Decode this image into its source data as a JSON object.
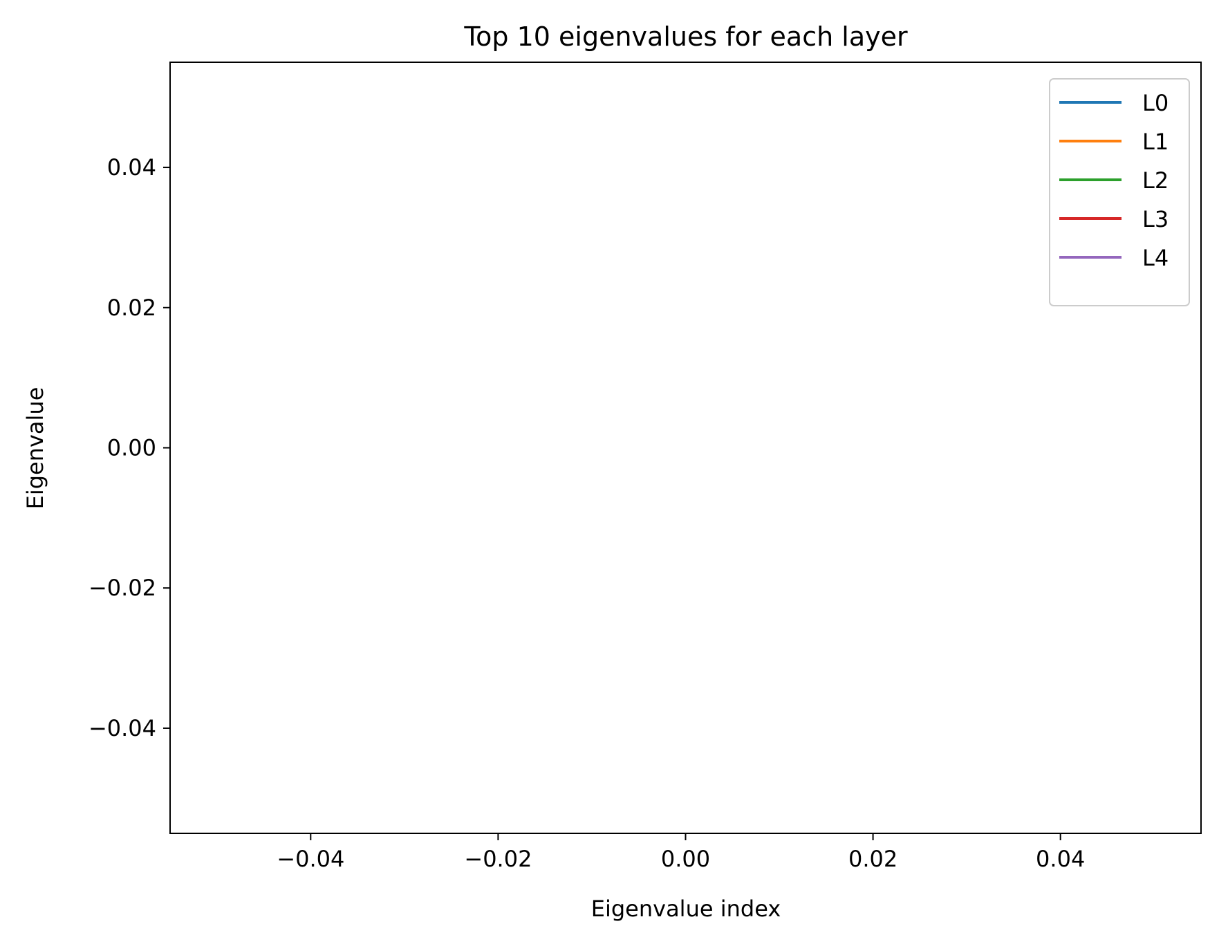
{
  "chart_data": {
    "type": "line",
    "title": "Top 10 eigenvalues for each layer",
    "xlabel": "Eigenvalue index",
    "ylabel": "Eigenvalue",
    "xlim": [
      -0.055,
      0.055
    ],
    "ylim": [
      -0.055,
      0.055
    ],
    "xticks": [
      -0.04,
      -0.02,
      0.0,
      0.02,
      0.04
    ],
    "yticks": [
      -0.04,
      -0.02,
      0.0,
      0.02,
      0.04
    ],
    "xtick_labels": [
      "−0.04",
      "−0.02",
      "0.00",
      "0.02",
      "0.04"
    ],
    "ytick_labels": [
      "−0.04",
      "−0.02",
      "0.00",
      "0.02",
      "0.04"
    ],
    "grid": false,
    "legend_position": "top-right",
    "series": [
      {
        "name": "L0",
        "color": "#1f77b4",
        "x": [],
        "y": []
      },
      {
        "name": "L1",
        "color": "#ff7f0e",
        "x": [],
        "y": []
      },
      {
        "name": "L2",
        "color": "#2ca02c",
        "x": [],
        "y": []
      },
      {
        "name": "L3",
        "color": "#d62728",
        "x": [],
        "y": []
      },
      {
        "name": "L4",
        "color": "#9467bd",
        "x": [],
        "y": []
      }
    ]
  }
}
